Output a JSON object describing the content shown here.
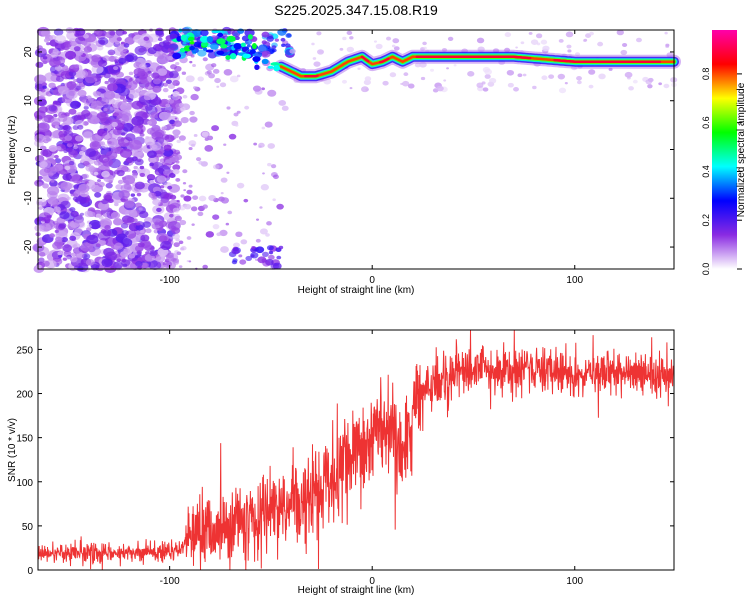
{
  "title": "S225.2025.347.15.08.R19",
  "chart_data": [
    {
      "type": "heatmap",
      "xlabel": "Height of straight line (km)",
      "ylabel": "Frequency (Hz)",
      "xlim": [
        -165,
        149
      ],
      "ylim": [
        -24.5,
        24.5
      ],
      "xticks": [
        -100,
        0,
        100
      ],
      "yticks": [
        -20,
        -10,
        0,
        10,
        20
      ],
      "colorbar": {
        "label": "Normalized spectral amplitude",
        "range": [
          0,
          0.98
        ],
        "ticks": [
          "0.0",
          "0.2",
          "0.4",
          "0.6",
          "0.8"
        ],
        "colors": [
          "#ffffff",
          "#8a2be2",
          "#0000ff",
          "#00ffff",
          "#00ff00",
          "#ffff00",
          "#ff0000",
          "#ff00aa"
        ]
      },
      "ridge": {
        "description_points_x": [
          -95,
          -85,
          -70,
          -55,
          -45,
          -35,
          -28,
          -20,
          -12,
          -5,
          0,
          5,
          10,
          15,
          20,
          30,
          50,
          70,
          85,
          100,
          120,
          140,
          149
        ],
        "description_points_y": [
          22,
          22.5,
          21,
          19.5,
          17,
          15,
          15,
          16,
          18,
          19,
          17.5,
          18,
          19,
          18,
          19,
          19,
          19,
          19,
          18.5,
          18,
          18,
          18,
          18
        ]
      }
    },
    {
      "type": "line",
      "xlabel": "Height of straight line (km)",
      "ylabel": "SNR (10 * v/v)",
      "xlim": [
        -165,
        149
      ],
      "ylim": [
        0,
        272
      ],
      "xticks": [
        -100,
        0,
        100
      ],
      "yticks": [
        0,
        50,
        100,
        150,
        200,
        250
      ],
      "color": "#ee3333",
      "x_anchor": [
        -165,
        -130,
        -95,
        -90,
        -60,
        -40,
        -20,
        -10,
        0,
        5,
        10,
        15,
        20,
        25,
        30,
        50,
        70,
        90,
        110,
        130,
        149
      ],
      "y_anchor": [
        18,
        20,
        22,
        38,
        55,
        75,
        100,
        120,
        150,
        165,
        150,
        120,
        170,
        200,
        215,
        228,
        228,
        225,
        222,
        220,
        218
      ]
    }
  ]
}
